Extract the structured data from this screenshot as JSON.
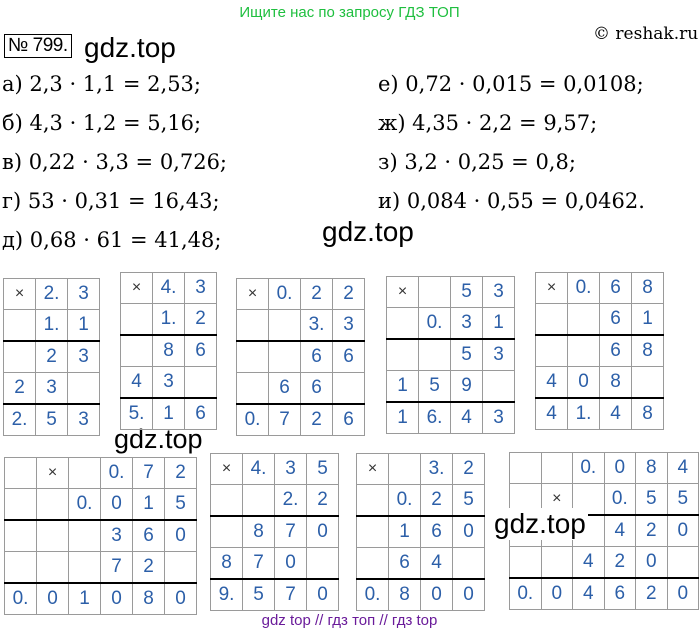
{
  "banner": "Ищите нас по запросу ГДЗ ТОП",
  "copyright": "© reshak.ru",
  "number": "№ 799.",
  "watermark": "gdz.top",
  "equations_left": [
    "а) 2,3 · 1,1 = 2,53;",
    "б) 4,3 · 1,2 = 5,16;",
    "в) 0,22 · 3,3 = 0,726;",
    "г) 53 · 0,31 = 16,43;",
    "д) 0,68 · 61 = 41,48;"
  ],
  "equations_right": [
    "е) 0,72 · 0,015 = 0,0108;",
    "ж) 4,35 · 2,2 = 9,57;",
    "з) 3,2 · 0,25 = 0,8;",
    "и) 0,084 · 0,55 = 0,0462."
  ],
  "grids": [
    {
      "rows": [
        [
          "×",
          "2.",
          "3"
        ],
        [
          "",
          "1.",
          "1"
        ],
        [
          "",
          "2",
          "3"
        ],
        [
          "2",
          "3",
          ""
        ],
        [
          "2.",
          "5",
          "3"
        ]
      ],
      "seps": [
        2,
        4
      ]
    },
    {
      "rows": [
        [
          "×",
          "4.",
          "3"
        ],
        [
          "",
          "1.",
          "2"
        ],
        [
          "",
          "8",
          "6"
        ],
        [
          "4",
          "3",
          ""
        ],
        [
          "5.",
          "1",
          "6"
        ]
      ],
      "seps": [
        2,
        4
      ]
    },
    {
      "rows": [
        [
          "×",
          "0.",
          "2",
          "2"
        ],
        [
          "",
          "",
          "3.",
          "3"
        ],
        [
          "",
          "",
          "6",
          "6"
        ],
        [
          "",
          "6",
          "6",
          ""
        ],
        [
          "0.",
          "7",
          "2",
          "6"
        ]
      ],
      "seps": [
        2,
        4
      ]
    },
    {
      "rows": [
        [
          "×",
          "",
          "5",
          "3"
        ],
        [
          "",
          "0.",
          "3",
          "1"
        ],
        [
          "",
          "",
          "5",
          "3"
        ],
        [
          "1",
          "5",
          "9",
          ""
        ],
        [
          "1",
          "6.",
          "4",
          "3"
        ]
      ],
      "seps": [
        2,
        4
      ]
    },
    {
      "rows": [
        [
          "×",
          "0.",
          "6",
          "8"
        ],
        [
          "",
          "",
          "6",
          "1"
        ],
        [
          "",
          "",
          "6",
          "8"
        ],
        [
          "4",
          "0",
          "8",
          ""
        ],
        [
          "4",
          "1.",
          "4",
          "8"
        ]
      ],
      "seps": [
        2,
        4
      ]
    },
    {
      "rows": [
        [
          "",
          "×",
          "",
          "0.",
          "7",
          "2"
        ],
        [
          "",
          "",
          "0.",
          "0",
          "1",
          "5"
        ],
        [
          "",
          "",
          "",
          "3",
          "6",
          "0"
        ],
        [
          "",
          "",
          "",
          "7",
          "2",
          ""
        ],
        [
          "0.",
          "0",
          "1",
          "0",
          "8",
          "0"
        ]
      ],
      "seps": [
        2,
        4
      ]
    },
    {
      "rows": [
        [
          "×",
          "4.",
          "3",
          "5"
        ],
        [
          "",
          "",
          "2.",
          "2"
        ],
        [
          "",
          "8",
          "7",
          "0"
        ],
        [
          "8",
          "7",
          "0",
          ""
        ],
        [
          "9.",
          "5",
          "7",
          "0"
        ]
      ],
      "seps": [
        2,
        4
      ]
    },
    {
      "rows": [
        [
          "×",
          "",
          "3.",
          "2"
        ],
        [
          "",
          "0.",
          "2",
          "5"
        ],
        [
          "",
          "1",
          "6",
          "0"
        ],
        [
          "",
          "6",
          "4",
          ""
        ],
        [
          "0.",
          "8",
          "0",
          "0"
        ]
      ],
      "seps": [
        2,
        4
      ]
    },
    {
      "rows": [
        [
          "",
          "",
          "0.",
          "0",
          "8",
          "4"
        ],
        [
          "",
          "×",
          "",
          "0.",
          "5",
          "5"
        ],
        [
          "",
          "",
          "",
          "4",
          "2",
          "0"
        ],
        [
          "",
          "",
          "4",
          "2",
          "0",
          ""
        ],
        [
          "0.",
          "0",
          "4",
          "6",
          "2",
          "0"
        ]
      ],
      "seps": [
        2,
        4
      ]
    }
  ],
  "footer": "gdz top  //  гдз топ  //  гдз top"
}
